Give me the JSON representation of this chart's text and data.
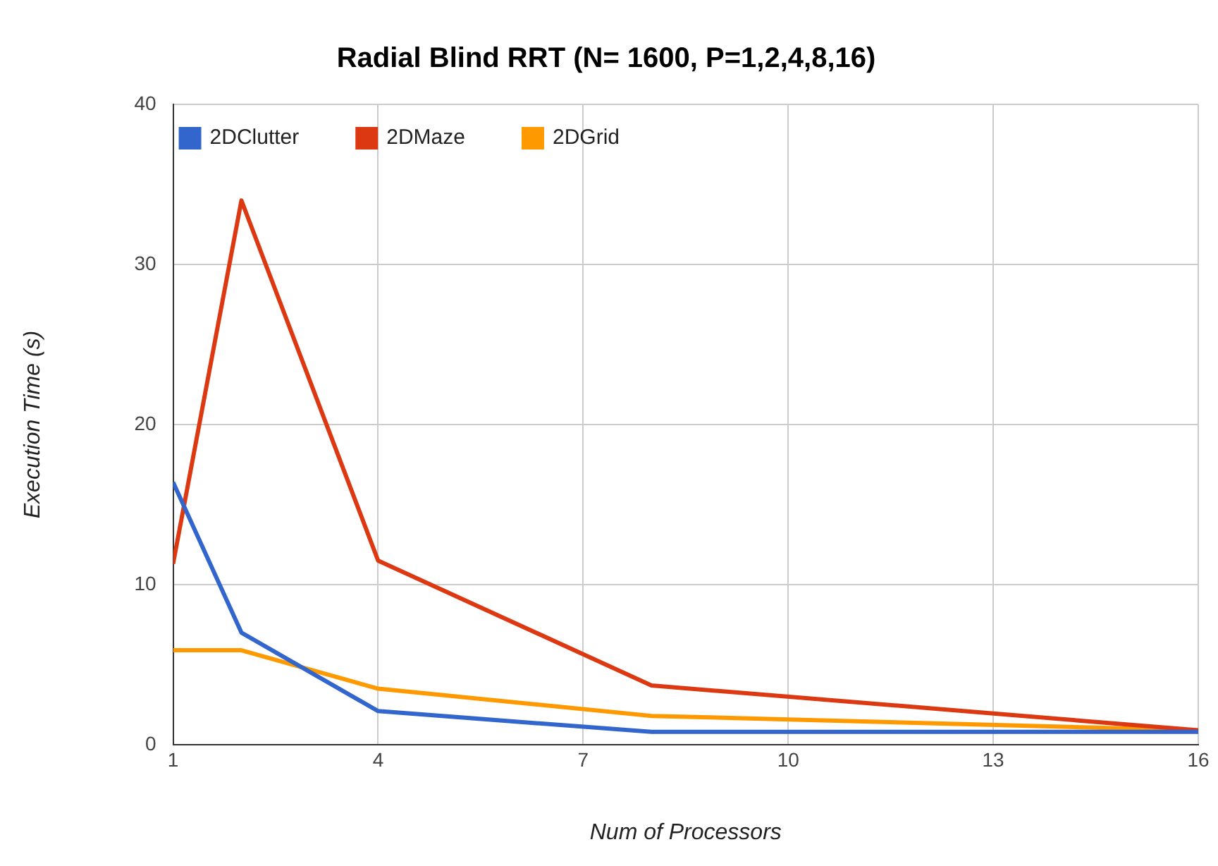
{
  "chart_data": {
    "type": "line",
    "title": "Radial Blind RRT (N= 1600, P=1,2,4,8,16)",
    "xlabel": "Num of Processors",
    "ylabel": "Execution Time (s)",
    "x": [
      1,
      2,
      4,
      8,
      16
    ],
    "series": [
      {
        "name": "2DClutter",
        "color": "#3366cc",
        "values": [
          16.4,
          7.0,
          2.1,
          0.8,
          0.8
        ]
      },
      {
        "name": "2DMaze",
        "color": "#dc3912",
        "values": [
          11.3,
          34.0,
          11.5,
          3.7,
          0.9
        ]
      },
      {
        "name": "2DGrid",
        "color": "#ff9900",
        "values": [
          5.9,
          5.9,
          3.5,
          1.8,
          0.9
        ]
      }
    ],
    "xlim": [
      1,
      16
    ],
    "xticks": [
      1,
      4,
      7,
      10,
      13,
      16
    ],
    "ylim": [
      0,
      40
    ],
    "yticks": [
      0,
      10,
      20,
      30,
      40
    ],
    "grid": true,
    "legend": "top left",
    "marker": "none",
    "line_style": "solid"
  }
}
